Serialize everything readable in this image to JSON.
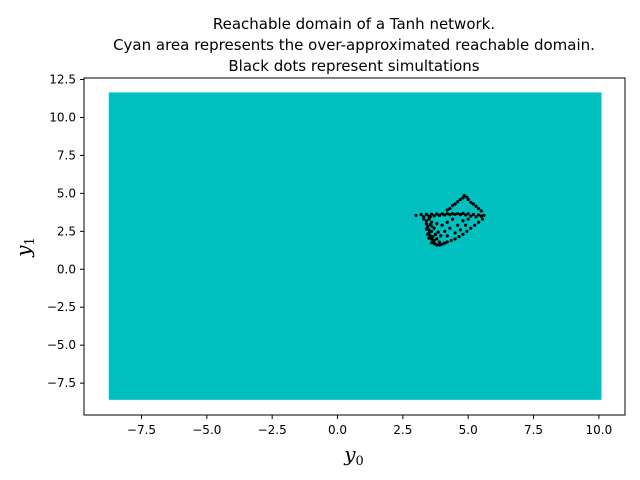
{
  "chart_data": {
    "type": "scatter",
    "title_lines": [
      "Reachable domain of a Tanh network.",
      "Cyan area represents the over-approximated reachable domain.",
      "Black dots represent simultations"
    ],
    "xlabel": {
      "base": "y",
      "sub": "0"
    },
    "ylabel": {
      "base": "y",
      "sub": "1"
    },
    "xlim": [
      -9.7,
      11.0
    ],
    "ylim": [
      -9.6,
      12.6
    ],
    "xticks": [
      -7.5,
      -5.0,
      -2.5,
      0.0,
      2.5,
      5.0,
      7.5,
      10.0
    ],
    "xtick_labels": [
      "−7.5",
      "−5.0",
      "−2.5",
      "0.0",
      "2.5",
      "5.0",
      "7.5",
      "10.0"
    ],
    "yticks": [
      -7.5,
      -5.0,
      -2.5,
      0.0,
      2.5,
      5.0,
      7.5,
      10.0,
      12.5
    ],
    "ytick_labels": [
      "−7.5",
      "−5.0",
      "−2.5",
      "0.0",
      "2.5",
      "5.0",
      "7.5",
      "10.0",
      "12.5"
    ],
    "grid": false,
    "reachable_box": {
      "x0": -8.75,
      "x1": 10.1,
      "y0": -8.6,
      "y1": 11.65,
      "color": "#00bfbf"
    },
    "simulation_color": "#000000",
    "simulations": [
      [
        3.0,
        3.55
      ],
      [
        3.2,
        3.6
      ],
      [
        3.4,
        3.62
      ],
      [
        3.6,
        3.63
      ],
      [
        3.8,
        3.64
      ],
      [
        4.0,
        3.65
      ],
      [
        4.2,
        3.66
      ],
      [
        4.4,
        3.66
      ],
      [
        4.6,
        3.67
      ],
      [
        4.8,
        3.68
      ],
      [
        5.0,
        3.66
      ],
      [
        5.2,
        3.62
      ],
      [
        5.4,
        3.58
      ],
      [
        5.6,
        3.55
      ],
      [
        3.3,
        3.45
      ],
      [
        3.5,
        3.5
      ],
      [
        3.7,
        3.52
      ],
      [
        3.9,
        3.55
      ],
      [
        4.1,
        3.58
      ],
      [
        4.3,
        3.6
      ],
      [
        4.5,
        3.62
      ],
      [
        4.7,
        3.6
      ],
      [
        4.9,
        3.58
      ],
      [
        5.1,
        3.5
      ],
      [
        5.3,
        3.45
      ],
      [
        5.5,
        3.5
      ],
      [
        3.4,
        3.2
      ],
      [
        3.4,
        3.0
      ],
      [
        3.45,
        2.8
      ],
      [
        3.5,
        2.6
      ],
      [
        3.5,
        2.4
      ],
      [
        3.55,
        2.2
      ],
      [
        3.6,
        2.0
      ],
      [
        3.65,
        1.85
      ],
      [
        3.7,
        1.7
      ],
      [
        3.8,
        1.6
      ],
      [
        3.9,
        1.6
      ],
      [
        4.0,
        1.65
      ],
      [
        4.1,
        1.72
      ],
      [
        4.2,
        1.8
      ],
      [
        4.35,
        1.9
      ],
      [
        4.5,
        2.0
      ],
      [
        4.65,
        2.15
      ],
      [
        4.8,
        2.3
      ],
      [
        4.95,
        2.5
      ],
      [
        5.1,
        2.7
      ],
      [
        5.25,
        2.9
      ],
      [
        5.4,
        3.1
      ],
      [
        5.55,
        3.3
      ],
      [
        3.5,
        3.3
      ],
      [
        3.6,
        3.1
      ],
      [
        3.55,
        2.95
      ],
      [
        3.7,
        2.7
      ],
      [
        3.6,
        2.5
      ],
      [
        3.75,
        2.3
      ],
      [
        3.65,
        2.15
      ],
      [
        3.8,
        2.0
      ],
      [
        3.7,
        1.9
      ],
      [
        3.9,
        1.8
      ],
      [
        3.6,
        1.75
      ],
      [
        3.75,
        1.65
      ],
      [
        3.5,
        2.05
      ],
      [
        3.45,
        2.3
      ],
      [
        3.85,
        2.45
      ],
      [
        3.95,
        2.2
      ],
      [
        3.6,
        2.85
      ],
      [
        3.4,
        2.65
      ],
      [
        3.55,
        3.45
      ],
      [
        3.3,
        3.3
      ],
      [
        3.8,
        3.0
      ],
      [
        4.0,
        2.9
      ],
      [
        4.2,
        3.1
      ],
      [
        4.4,
        3.3
      ],
      [
        4.1,
        2.5
      ],
      [
        4.3,
        2.7
      ],
      [
        4.6,
        2.9
      ],
      [
        4.8,
        3.2
      ],
      [
        5.0,
        3.3
      ],
      [
        4.5,
        2.4
      ],
      [
        4.7,
        2.6
      ],
      [
        4.2,
        2.2
      ],
      [
        4.9,
        2.9
      ],
      [
        4.3,
        4.0
      ],
      [
        4.5,
        4.3
      ],
      [
        4.7,
        4.6
      ],
      [
        4.85,
        4.85
      ],
      [
        5.0,
        4.6
      ],
      [
        5.2,
        4.3
      ],
      [
        5.4,
        4.0
      ],
      [
        4.4,
        4.2
      ],
      [
        4.6,
        4.45
      ],
      [
        5.1,
        4.4
      ],
      [
        5.3,
        4.15
      ],
      [
        4.8,
        4.7
      ],
      [
        4.95,
        4.75
      ],
      [
        4.2,
        3.9
      ],
      [
        5.5,
        3.85
      ]
    ]
  }
}
